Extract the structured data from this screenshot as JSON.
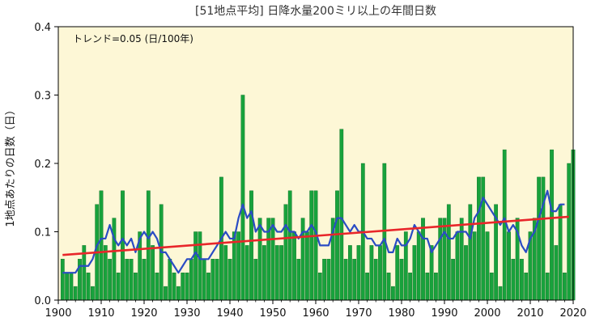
{
  "chart_data": {
    "type": "bar",
    "title": "[51地点平均] 日降水量200ミリ以上の年間日数",
    "xlabel": "",
    "ylabel": "1地点あたりの日数（日）",
    "annotation": "トレンド=0.05 (日/100年)",
    "xlim": [
      1900,
      2020
    ],
    "ylim": [
      0,
      0.4
    ],
    "xticks": [
      1900,
      1910,
      1920,
      1930,
      1940,
      1950,
      1960,
      1970,
      1980,
      1990,
      2000,
      2010,
      2020
    ],
    "yticks": [
      "0.0",
      "0.1",
      "0.2",
      "0.3",
      "0.4"
    ],
    "ytick_values": [
      0,
      0.1,
      0.2,
      0.3,
      0.4
    ],
    "years_start": 1901,
    "values": [
      0.06,
      0.04,
      0.04,
      0.02,
      0.06,
      0.08,
      0.04,
      0.02,
      0.14,
      0.16,
      0.08,
      0.06,
      0.12,
      0.04,
      0.16,
      0.06,
      0.06,
      0.04,
      0.1,
      0.06,
      0.16,
      0.08,
      0.04,
      0.14,
      0.02,
      0.06,
      0.04,
      0.02,
      0.04,
      0.04,
      0.06,
      0.1,
      0.1,
      0.06,
      0.04,
      0.06,
      0.06,
      0.18,
      0.08,
      0.06,
      0.1,
      0.1,
      0.3,
      0.08,
      0.16,
      0.06,
      0.12,
      0.08,
      0.12,
      0.12,
      0.08,
      0.08,
      0.14,
      0.16,
      0.1,
      0.06,
      0.12,
      0.1,
      0.16,
      0.16,
      0.04,
      0.06,
      0.06,
      0.12,
      0.16,
      0.25,
      0.06,
      0.08,
      0.06,
      0.08,
      0.2,
      0.04,
      0.08,
      0.06,
      0.08,
      0.2,
      0.04,
      0.02,
      0.08,
      0.06,
      0.1,
      0.04,
      0.08,
      0.1,
      0.12,
      0.04,
      0.08,
      0.04,
      0.12,
      0.12,
      0.14,
      0.06,
      0.1,
      0.12,
      0.08,
      0.14,
      0.1,
      0.18,
      0.18,
      0.1,
      0.04,
      0.14,
      0.02,
      0.22,
      0.1,
      0.06,
      0.12,
      0.06,
      0.04,
      0.1,
      0.12,
      0.18,
      0.18,
      0.04,
      0.22,
      0.08,
      0.14,
      0.04,
      0.2,
      0.22
    ],
    "moving_average": [
      0.04,
      0.04,
      0.04,
      0.04,
      0.05,
      0.05,
      0.05,
      0.06,
      0.08,
      0.09,
      0.09,
      0.11,
      0.09,
      0.08,
      0.09,
      0.08,
      0.09,
      0.07,
      0.09,
      0.1,
      0.09,
      0.1,
      0.09,
      0.07,
      0.07,
      0.06,
      0.05,
      0.04,
      0.05,
      0.06,
      0.06,
      0.07,
      0.06,
      0.06,
      0.06,
      0.07,
      0.08,
      0.09,
      0.1,
      0.09,
      0.09,
      0.12,
      0.14,
      0.12,
      0.13,
      0.1,
      0.11,
      0.1,
      0.1,
      0.11,
      0.1,
      0.1,
      0.11,
      0.1,
      0.1,
      0.09,
      0.1,
      0.1,
      0.11,
      0.1,
      0.08,
      0.08,
      0.08,
      0.1,
      0.12,
      0.12,
      0.11,
      0.1,
      0.11,
      0.1,
      0.1,
      0.09,
      0.09,
      0.08,
      0.08,
      0.09,
      0.07,
      0.07,
      0.09,
      0.08,
      0.08,
      0.09,
      0.11,
      0.1,
      0.09,
      0.09,
      0.07,
      0.08,
      0.09,
      0.1,
      0.09,
      0.09,
      0.1,
      0.1,
      0.1,
      0.09,
      0.12,
      0.13,
      0.15,
      0.14,
      0.13,
      0.12,
      0.11,
      0.12,
      0.1,
      0.11,
      0.1,
      0.08,
      0.07,
      0.09,
      0.1,
      0.12,
      0.14,
      0.16,
      0.13,
      0.13,
      0.14,
      0.14
    ],
    "trend_line": {
      "x": [
        1901,
        2019
      ],
      "y": [
        0.066,
        0.122
      ]
    },
    "colors": {
      "background": "#fdf7d6",
      "bar": "#18a23c",
      "bar_edge": "#0b6e24",
      "moving_average": "#2a4cc4",
      "trend": "#e8262a"
    }
  }
}
